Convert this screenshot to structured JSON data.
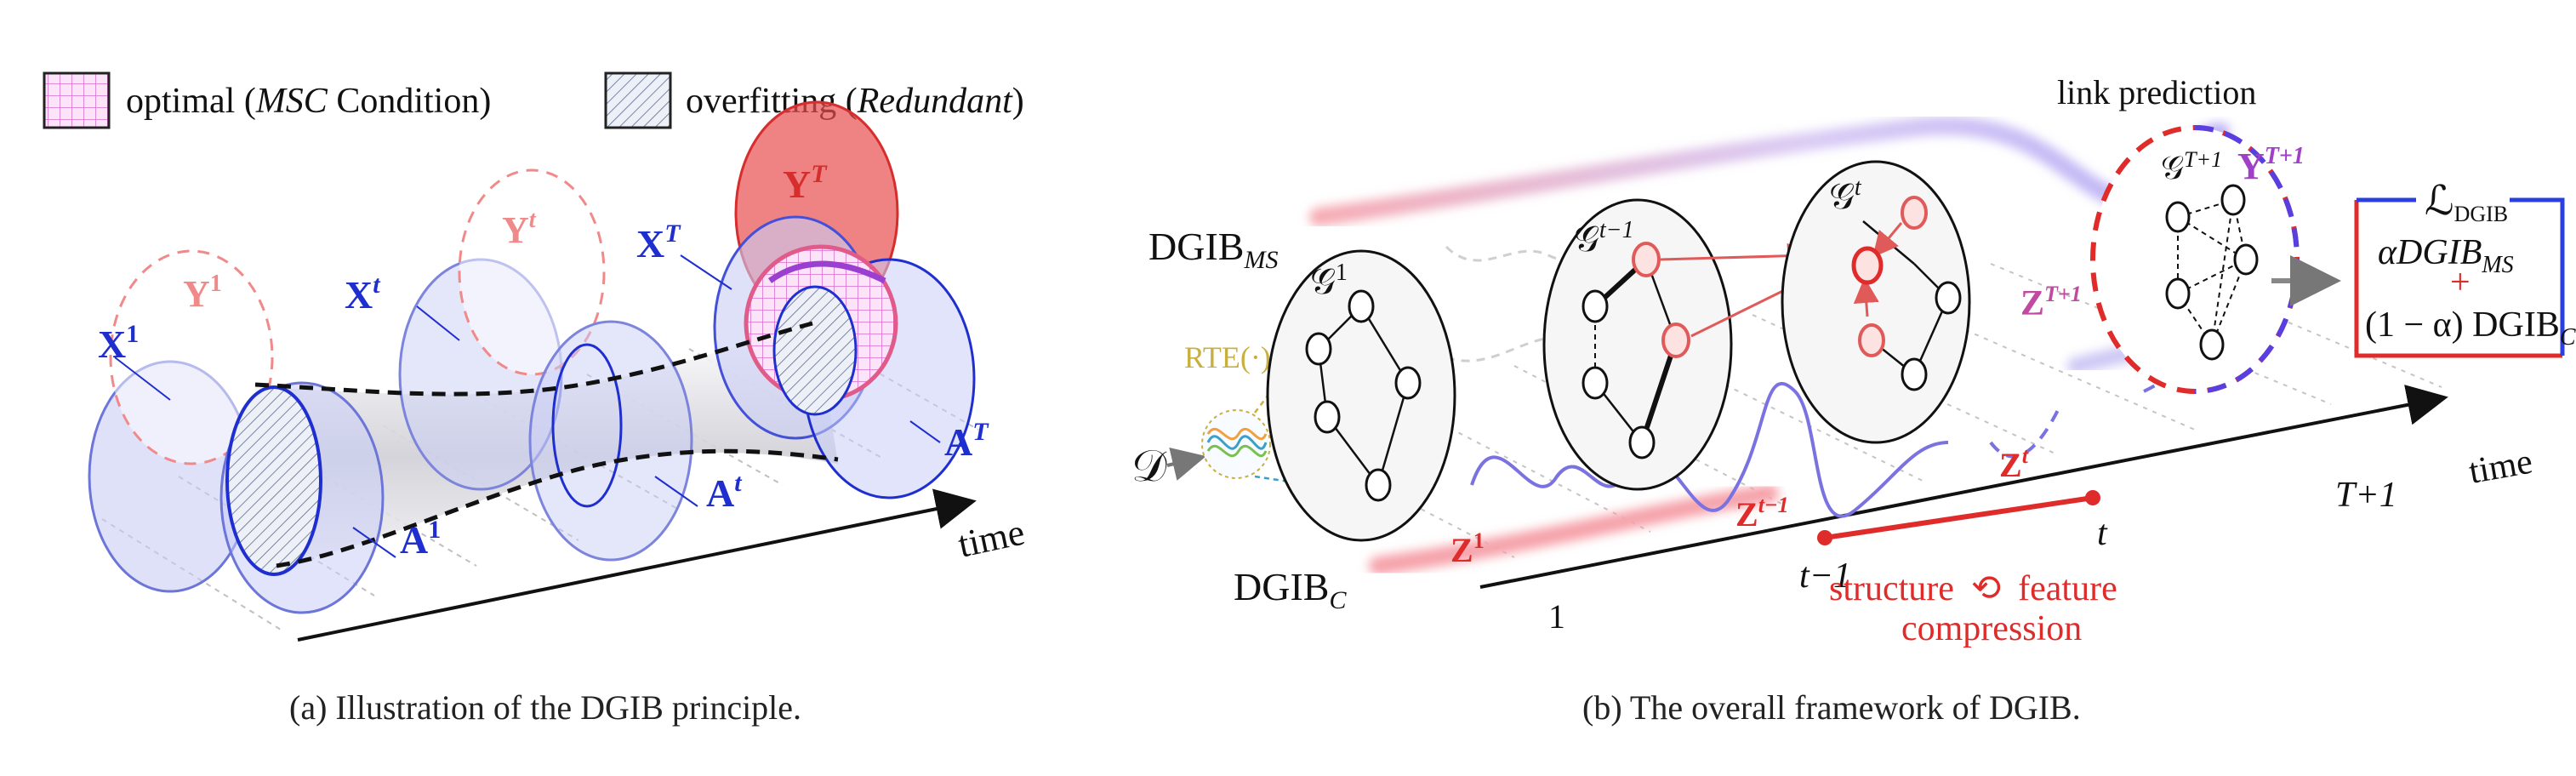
{
  "legend": {
    "optimal": {
      "pre": "optimal (",
      "em": "MSC",
      "post": " Condition)"
    },
    "overfitting": {
      "pre": "overfitting (",
      "em": "Redundant",
      "post": ")"
    }
  },
  "panel_a": {
    "caption": "(a)  Illustration of the DGIB principle.",
    "time_label": "time",
    "labels": {
      "X1": "X",
      "X1_sup": "1",
      "Y1": "Y",
      "Y1_sup": "1",
      "A1": "A",
      "A1_sup": "1",
      "Xt": "X",
      "Xt_sup": "t",
      "Yt": "Y",
      "Yt_sup": "t",
      "At": "A",
      "At_sup": "t",
      "XT": "X",
      "XT_sup": "T",
      "YT": "Y",
      "YT_sup": "T",
      "AT": "A",
      "AT_sup": "T"
    }
  },
  "panel_b": {
    "caption": "(b)  The overall framework of DGIB.",
    "link_prediction": "link prediction",
    "dgib_ms": "DGIB",
    "dgib_ms_sub": "MS",
    "dgib_c": "DGIB",
    "dgib_c_sub": "C",
    "rte": "RTE(·)",
    "dataset": "𝒟",
    "time_label": "time",
    "axis_ticks": {
      "one": "1",
      "t_minus_1": "t−1",
      "t": "t",
      "T_plus_1": "T+1"
    },
    "graphs": {
      "g1": "𝒢",
      "g1_sup": "1",
      "gt1": "𝒢",
      "gt1_sup": "t−1",
      "gt": "𝒢",
      "gt_sup": "t",
      "gT1": "𝒢",
      "gT1_sup": "T+1"
    },
    "z_labels": {
      "z1": "Z",
      "z1_sup": "1",
      "zt1": "Z",
      "zt1_sup": "t−1",
      "zt": "Z",
      "zt_sup": "t",
      "zT1": "Z",
      "zT1_sup": "T+1"
    },
    "y_T1": "Y",
    "y_T1_sup": "T+1",
    "compression": {
      "line1a": "structure",
      "line1b": "feature",
      "line2": "compression"
    },
    "loss_box": {
      "title": "ℒ",
      "title_sub": "DGIB",
      "line1": "αDGIB",
      "line1_sub": "MS",
      "plus": "+",
      "line2": "(1 − α) DGIB",
      "line2_sub": "C"
    }
  },
  "colors": {
    "blue": "#1f2fcf",
    "red": "#e03a3a",
    "pink": "#f08a8a",
    "purple": "#9a3fd0",
    "blue_fill": "#c9cdf5"
  }
}
